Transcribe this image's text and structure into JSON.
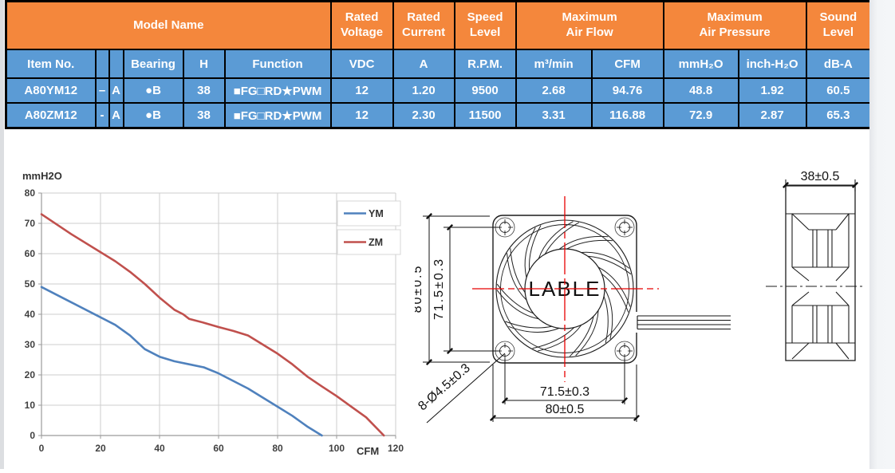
{
  "table": {
    "h1": {
      "model_name": "Model Name",
      "rated_voltage": "Rated\nVoltage",
      "rated_current": "Rated\nCurrent",
      "speed_level": "Speed\nLevel",
      "max_air_flow": "Maximum\nAir Flow",
      "max_air_pressure": "Maximum\nAir Pressure",
      "sound_level": "Sound\nLevel"
    },
    "h2": [
      "Item No.",
      "",
      "",
      "Bearing",
      "H",
      "Function",
      "VDC",
      "A",
      "R.P.M.",
      "m³/min",
      "CFM",
      "mmH₂O",
      "inch-H₂O",
      "dB-A"
    ],
    "rows": [
      [
        "A80YM12",
        "–",
        "A",
        "●B",
        "38",
        "■FG□RD★PWM",
        "12",
        "1.20",
        "9500",
        "2.68",
        "94.76",
        "48.8",
        "1.92",
        "60.5"
      ],
      [
        "A80ZM12",
        "-",
        "A",
        "●B",
        "38",
        "■FG□RD★PWM",
        "12",
        "2.30",
        "11500",
        "3.31",
        "116.88",
        "72.9",
        "2.87",
        "65.3"
      ]
    ]
  },
  "colors": {
    "header_orange": "#F4873C",
    "cell_blue": "#5B9BD5",
    "table_text": "#FFFFFF",
    "table_border": "#000000",
    "ym_line": "#4F81BD",
    "zm_line": "#C0504D",
    "centerline_red": "#E80000",
    "drawing_line": "#1C1C1C"
  },
  "chart_data": {
    "type": "line",
    "title": "mmH2O",
    "xlabel": "CFM",
    "ylabel": "mmH2O",
    "xlim": [
      0,
      120
    ],
    "ylim": [
      0,
      80
    ],
    "x_ticks": [
      0,
      20,
      40,
      60,
      80,
      100,
      120
    ],
    "y_ticks": [
      0,
      10,
      20,
      30,
      40,
      50,
      60,
      70,
      80
    ],
    "grid": true,
    "legend_position": "top-right",
    "series": [
      {
        "name": "YM",
        "color": "#4F81BD",
        "points": [
          [
            0,
            49
          ],
          [
            10,
            44
          ],
          [
            20,
            39
          ],
          [
            25,
            36.5
          ],
          [
            30,
            33
          ],
          [
            35,
            28.5
          ],
          [
            40,
            26
          ],
          [
            45,
            24.5
          ],
          [
            50,
            23.5
          ],
          [
            55,
            22.5
          ],
          [
            60,
            20.5
          ],
          [
            65,
            18
          ],
          [
            70,
            15.5
          ],
          [
            75,
            12.5
          ],
          [
            80,
            9.5
          ],
          [
            85,
            6.5
          ],
          [
            90,
            3
          ],
          [
            95,
            0
          ]
        ]
      },
      {
        "name": "ZM",
        "color": "#C0504D",
        "points": [
          [
            0,
            73
          ],
          [
            10,
            66.5
          ],
          [
            20,
            60.5
          ],
          [
            25,
            57.5
          ],
          [
            30,
            54
          ],
          [
            35,
            50
          ],
          [
            40,
            45.5
          ],
          [
            45,
            41.5
          ],
          [
            48,
            40
          ],
          [
            50,
            38.5
          ],
          [
            55,
            37.2
          ],
          [
            60,
            35.8
          ],
          [
            65,
            34.5
          ],
          [
            70,
            33
          ],
          [
            75,
            30
          ],
          [
            80,
            27
          ],
          [
            85,
            23.5
          ],
          [
            90,
            19.5
          ],
          [
            95,
            16.2
          ],
          [
            100,
            13
          ],
          [
            105,
            9.5
          ],
          [
            110,
            6
          ],
          [
            116,
            0
          ]
        ]
      }
    ]
  },
  "drawings": {
    "front_view": {
      "hub_label": "LABLE",
      "dim_height_outer": "80±0.5",
      "dim_height_inner": "71.5±0.3",
      "dim_width_inner": "71.5±0.3",
      "dim_width_outer": "80±0.5",
      "holes_note": "8-Ø4.5±0.3"
    },
    "side_view": {
      "dim_depth": "38±0.5"
    }
  }
}
